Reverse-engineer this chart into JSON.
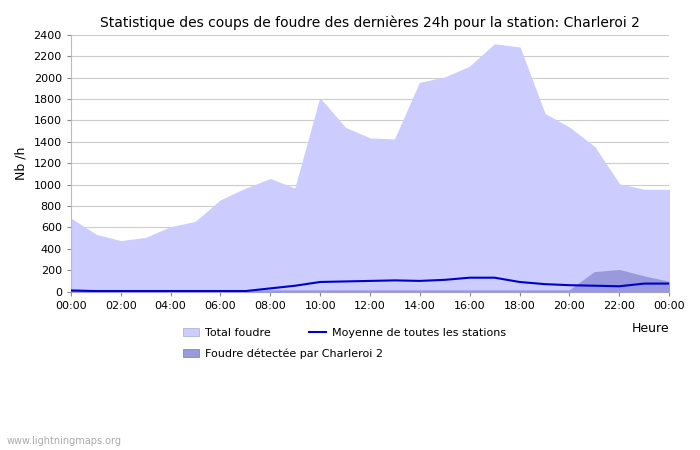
{
  "title": "Statistique des coups de foudre des dernières 24h pour la station: Charleroi 2",
  "ylabel": "Nb /h",
  "ylim": [
    0,
    2400
  ],
  "yticks": [
    0,
    200,
    400,
    600,
    800,
    1000,
    1200,
    1400,
    1600,
    1800,
    2000,
    2200,
    2400
  ],
  "background_color": "#ffffff",
  "grid_color": "#cccccc",
  "total_foudre_color": "#ccccff",
  "charleroi_color": "#9999dd",
  "moyenne_color": "#0000cc",
  "watermark": "www.lightningmaps.org",
  "legend_total": "Total foudre",
  "legend_moyenne": "Moyenne de toutes les stations",
  "legend_charleroi": "Foudre détectée par Charleroi 2",
  "xtick_labels": [
    "00:00",
    "02:00",
    "04:00",
    "06:00",
    "08:00",
    "10:00",
    "12:00",
    "14:00",
    "16:00",
    "18:00",
    "20:00",
    "22:00",
    "00:00"
  ],
  "hours": [
    0,
    1,
    2,
    3,
    4,
    5,
    6,
    7,
    8,
    9,
    10,
    11,
    12,
    13,
    14,
    15,
    16,
    17,
    18,
    19,
    20,
    21,
    22,
    23,
    24
  ],
  "total_foudre": [
    680,
    530,
    470,
    500,
    600,
    650,
    850,
    960,
    1050,
    960,
    1800,
    1530,
    1430,
    1420,
    1950,
    2000,
    2100,
    2310,
    2280,
    1660,
    1530,
    1350,
    1000,
    950,
    950
  ],
  "charleroi": [
    20,
    10,
    10,
    10,
    10,
    10,
    10,
    10,
    10,
    10,
    10,
    10,
    10,
    10,
    10,
    10,
    10,
    10,
    10,
    10,
    10,
    180,
    200,
    140,
    90
  ],
  "moyenne": [
    10,
    5,
    5,
    5,
    5,
    5,
    5,
    5,
    30,
    55,
    90,
    95,
    100,
    105,
    100,
    110,
    130,
    130,
    90,
    70,
    60,
    55,
    50,
    75,
    75
  ]
}
